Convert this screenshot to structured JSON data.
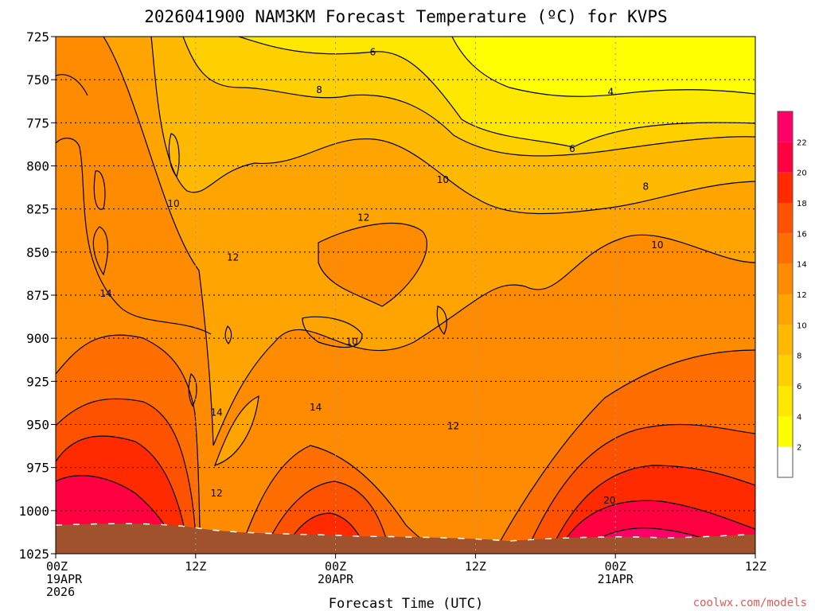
{
  "title": "2026041900 NAM3KM Forecast Temperature (ºC) for KVPS",
  "credit": "coolwx.com/models",
  "palette": {
    "2": "#ffffff",
    "4": "#ffff00",
    "6": "#ffe800",
    "8": "#ffd000",
    "10": "#ffba00",
    "12": "#ffa400",
    "14": "#ff8c00",
    "16": "#ff6e00",
    "18": "#ff5200",
    "20": "#ff2a00",
    "22": "#ff0040",
    "24": "#ff0068"
  },
  "ground_color": "#a0522d",
  "chart_data": {
    "type": "heatmap",
    "title": "2026041900 NAM3KM Forecast Temperature (ºC) for KVPS",
    "xlabel": "Forecast Time (UTC)",
    "ylabel": "",
    "x_ticks": [
      {
        "hour": 0,
        "lines": [
          "00Z",
          "19APR",
          "2026"
        ]
      },
      {
        "hour": 12,
        "lines": [
          "12Z"
        ]
      },
      {
        "hour": 24,
        "lines": [
          "00Z",
          "20APR"
        ]
      },
      {
        "hour": 36,
        "lines": [
          "12Z"
        ]
      },
      {
        "hour": 48,
        "lines": [
          "00Z",
          "21APR"
        ]
      },
      {
        "hour": 60,
        "lines": [
          "12Z"
        ]
      }
    ],
    "xlim": [
      0,
      60
    ],
    "y_ticks": [
      725,
      750,
      775,
      800,
      825,
      850,
      875,
      900,
      925,
      950,
      975,
      1000,
      1025
    ],
    "ylim": [
      725,
      1025
    ],
    "y_scale": "pressure (hPa), inverted",
    "grid": true,
    "colorbar_levels": [
      2,
      4,
      6,
      8,
      10,
      12,
      14,
      16,
      18,
      20,
      22
    ],
    "contour_labels": [
      {
        "text": "6",
        "hour": 27.2,
        "p": 734
      },
      {
        "text": "8",
        "hour": 22.6,
        "p": 756
      },
      {
        "text": "4",
        "hour": 47.6,
        "p": 757
      },
      {
        "text": "6",
        "hour": 44.3,
        "p": 790
      },
      {
        "text": "10",
        "hour": 10.1,
        "p": 822
      },
      {
        "text": "10",
        "hour": 33.2,
        "p": 808
      },
      {
        "text": "8",
        "hour": 50.6,
        "p": 812
      },
      {
        "text": "12",
        "hour": 26.4,
        "p": 830
      },
      {
        "text": "12",
        "hour": 15.2,
        "p": 853
      },
      {
        "text": "10",
        "hour": 51.6,
        "p": 846
      },
      {
        "text": "14",
        "hour": 4.3,
        "p": 874
      },
      {
        "text": "10",
        "hour": 25.4,
        "p": 902
      },
      {
        "text": "14",
        "hour": 13.8,
        "p": 943
      },
      {
        "text": "14",
        "hour": 22.3,
        "p": 940
      },
      {
        "text": "12",
        "hour": 34.1,
        "p": 951
      },
      {
        "text": "12",
        "hour": 13.8,
        "p": 990
      },
      {
        "text": "20",
        "hour": 47.5,
        "p": 994
      }
    ]
  }
}
